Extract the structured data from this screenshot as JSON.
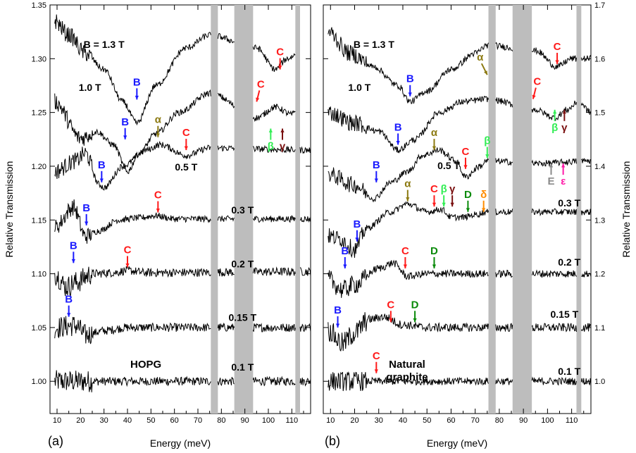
{
  "colors": {
    "B": "#1a1aff",
    "C": "#ff1a1a",
    "alpha": "#8c7a12",
    "beta": "#33ee55",
    "gamma": "#7a1010",
    "delta": "#ff8c00",
    "D": "#0a8a0a",
    "E": "#8a8a8a",
    "epsilon": "#ff1aa8",
    "trace": "#000000",
    "band": "#bdbdbd"
  },
  "chart_data": [
    {
      "type": "line",
      "panel_label": "(a)",
      "sample_label": "HOPG",
      "xlabel": "Energy (meV)",
      "ylabel": "Relative Transmission",
      "xlim": [
        7,
        118
      ],
      "ylim": [
        0.97,
        1.35
      ],
      "x_ticks": [
        "10",
        "20",
        "30",
        "40",
        "50",
        "60",
        "70",
        "80",
        "90",
        "100",
        "110"
      ],
      "y_ticks": [
        "1.00",
        "1.05",
        "1.10",
        "1.15",
        "1.20",
        "1.25",
        "1.30",
        "1.35"
      ],
      "gray_bands_meV": [
        [
          75.5,
          78.5
        ],
        [
          85.5,
          93.5
        ],
        [
          111.5,
          113.5
        ]
      ],
      "series": [
        {
          "name": "0.1 T",
          "baseline": 1.0,
          "anchors": [
            [
              9,
              1.0
            ],
            [
              118,
              1.0
            ]
          ],
          "noise": 0.004
        },
        {
          "name": "0.15 T",
          "baseline": 1.05,
          "anchors": [
            [
              9,
              1.05
            ],
            [
              18,
              1.052
            ],
            [
              22,
              1.043
            ],
            [
              30,
              1.047
            ],
            [
              40,
              1.05
            ],
            [
              118,
              1.05
            ]
          ],
          "noise": 0.004
        },
        {
          "name": "0.2 T",
          "baseline": 1.1,
          "anchors": [
            [
              9,
              1.1
            ],
            [
              14,
              1.088
            ],
            [
              18,
              1.092
            ],
            [
              25,
              1.1
            ],
            [
              34,
              1.101
            ],
            [
              40,
              1.103
            ],
            [
              48,
              1.101
            ],
            [
              118,
              1.102
            ]
          ],
          "noise": 0.004
        },
        {
          "name": "0.3 T",
          "baseline": 1.15,
          "anchors": [
            [
              9,
              1.143
            ],
            [
              17,
              1.162
            ],
            [
              22,
              1.135
            ],
            [
              28,
              1.14
            ],
            [
              36,
              1.15
            ],
            [
              45,
              1.152
            ],
            [
              52,
              1.154
            ],
            [
              60,
              1.151
            ],
            [
              118,
              1.151
            ]
          ],
          "noise": 0.003
        },
        {
          "name": "0.5 T",
          "baseline": 1.2,
          "anchors": [
            [
              9,
              1.195
            ],
            [
              18,
              1.205
            ],
            [
              22,
              1.212
            ],
            [
              28,
              1.183
            ],
            [
              30,
              1.18
            ],
            [
              38,
              1.2
            ],
            [
              48,
              1.215
            ],
            [
              54,
              1.22
            ],
            [
              65,
              1.21
            ],
            [
              75,
              1.217
            ],
            [
              118,
              1.215
            ]
          ],
          "noise": 0.003
        },
        {
          "name": "1.0 T",
          "baseline": 1.25,
          "anchors": [
            [
              9,
              1.26
            ],
            [
              20,
              1.226
            ],
            [
              27,
              1.232
            ],
            [
              34,
              1.22
            ],
            [
              40,
              1.195
            ],
            [
              45,
              1.212
            ],
            [
              52,
              1.23
            ],
            [
              62,
              1.25
            ],
            [
              75,
              1.268
            ],
            [
              95,
              1.245
            ],
            [
              103,
              1.255
            ],
            [
              110,
              1.248
            ],
            [
              113,
              1.256
            ]
          ],
          "noise": 0.003
        },
        {
          "name": "B = 1.3 T",
          "baseline": 1.3,
          "anchors": [
            [
              9,
              1.335
            ],
            [
              15,
              1.322
            ],
            [
              22,
              1.305
            ],
            [
              30,
              1.29
            ],
            [
              38,
              1.26
            ],
            [
              44,
              1.24
            ],
            [
              52,
              1.275
            ],
            [
              65,
              1.31
            ],
            [
              75,
              1.322
            ],
            [
              95,
              1.31
            ],
            [
              103,
              1.29
            ],
            [
              108,
              1.3
            ],
            [
              113,
              1.305
            ]
          ],
          "noise": 0.003
        }
      ],
      "annotations": [
        {
          "text": "B",
          "kind": "B",
          "dir": "down",
          "x": 15,
          "y": 1.06
        },
        {
          "text": "B",
          "kind": "B",
          "dir": "down",
          "x": 17,
          "y": 1.11
        },
        {
          "text": "B",
          "kind": "B",
          "dir": "down",
          "x": 22.5,
          "y": 1.145
        },
        {
          "text": "B",
          "kind": "B",
          "dir": "down",
          "x": 29,
          "y": 1.185
        },
        {
          "text": "B",
          "kind": "B",
          "dir": "down",
          "x": 39,
          "y": 1.225
        },
        {
          "text": "B",
          "kind": "B",
          "dir": "down",
          "x": 44,
          "y": 1.262
        },
        {
          "text": "C",
          "kind": "C",
          "dir": "down",
          "x": 40,
          "y": 1.106
        },
        {
          "text": "C",
          "kind": "C",
          "dir": "down",
          "x": 53,
          "y": 1.157
        },
        {
          "text": "C",
          "kind": "C",
          "dir": "down",
          "x": 65,
          "y": 1.215
        },
        {
          "text": "C",
          "kind": "C",
          "dir": "down-left",
          "x": 95,
          "y": 1.26
        },
        {
          "text": "C",
          "kind": "C",
          "dir": "down",
          "x": 105,
          "y": 1.29
        },
        {
          "text": "α",
          "kind": "alpha",
          "dir": "down",
          "x": 53,
          "y": 1.227
        },
        {
          "text": "β",
          "kind": "beta",
          "dir": "up",
          "x": 101,
          "y": 1.235
        },
        {
          "text": "γ",
          "kind": "gamma",
          "dir": "up",
          "x": 106,
          "y": 1.235
        }
      ],
      "curve_labels": [
        {
          "text": "B = 1.3 T",
          "x": 30,
          "y": 1.31
        },
        {
          "text": "1.0 T",
          "x": 24,
          "y": 1.27
        },
        {
          "text": "0.5 T",
          "x": 65,
          "y": 1.196
        },
        {
          "text": "0.3 T",
          "x": 89,
          "y": 1.156
        },
        {
          "text": "0.2 T",
          "x": 89,
          "y": 1.106
        },
        {
          "text": "0.15 T",
          "x": 89,
          "y": 1.056
        },
        {
          "text": "0.1 T",
          "x": 89,
          "y": 1.01
        }
      ]
    },
    {
      "type": "line",
      "panel_label": "(b)",
      "sample_label": "Natural graphite",
      "xlabel": "Energy (meV)",
      "ylabel": "Relative Transmission",
      "xlim": [
        7,
        118
      ],
      "ylim": [
        0.94,
        1.7
      ],
      "x_ticks": [
        "10",
        "20",
        "30",
        "40",
        "50",
        "60",
        "70",
        "80",
        "90",
        "100",
        "110"
      ],
      "y_ticks": [
        "1.0",
        "1.1",
        "1.2",
        "1.3",
        "1.4",
        "1.5",
        "1.6",
        "1.7"
      ],
      "gray_bands_meV": [
        [
          75.5,
          78.5
        ],
        [
          85.5,
          93.5
        ],
        [
          112,
          114
        ]
      ],
      "series": [
        {
          "name": "0.1 T",
          "baseline": 1.0,
          "anchors": [
            [
              9,
              1.0
            ],
            [
              118,
              1.0
            ]
          ],
          "noise": 0.007
        },
        {
          "name": "0.15 T",
          "baseline": 1.1,
          "anchors": [
            [
              9,
              1.095
            ],
            [
              15,
              1.07
            ],
            [
              20,
              1.09
            ],
            [
              26,
              1.115
            ],
            [
              32,
              1.12
            ],
            [
              40,
              1.105
            ],
            [
              50,
              1.1
            ],
            [
              118,
              1.1
            ]
          ],
          "noise": 0.008
        },
        {
          "name": "0.2 T",
          "baseline": 1.2,
          "anchors": [
            [
              9,
              1.19
            ],
            [
              15,
              1.17
            ],
            [
              20,
              1.18
            ],
            [
              30,
              1.21
            ],
            [
              36,
              1.22
            ],
            [
              42,
              1.195
            ],
            [
              50,
              1.2
            ],
            [
              118,
              1.2
            ]
          ],
          "noise": 0.007
        },
        {
          "name": "0.3 T",
          "baseline": 1.3,
          "anchors": [
            [
              9,
              1.27
            ],
            [
              14,
              1.265
            ],
            [
              20,
              1.245
            ],
            [
              25,
              1.285
            ],
            [
              35,
              1.315
            ],
            [
              42,
              1.33
            ],
            [
              50,
              1.315
            ],
            [
              56,
              1.32
            ],
            [
              60,
              1.305
            ],
            [
              65,
              1.305
            ],
            [
              70,
              1.31
            ],
            [
              75,
              1.315
            ],
            [
              118,
              1.315
            ]
          ],
          "noise": 0.006
        },
        {
          "name": "0.5 T",
          "baseline": 1.4,
          "anchors": [
            [
              9,
              1.385
            ],
            [
              20,
              1.365
            ],
            [
              28,
              1.34
            ],
            [
              35,
              1.37
            ],
            [
              42,
              1.39
            ],
            [
              48,
              1.42
            ],
            [
              55,
              1.43
            ],
            [
              62,
              1.41
            ],
            [
              66,
              1.38
            ],
            [
              72,
              1.4
            ],
            [
              75,
              1.41
            ],
            [
              95,
              1.405
            ],
            [
              118,
              1.41
            ]
          ],
          "noise": 0.006
        },
        {
          "name": "1.0 T",
          "baseline": 1.5,
          "anchors": [
            [
              9,
              1.5
            ],
            [
              20,
              1.48
            ],
            [
              30,
              1.465
            ],
            [
              38,
              1.43
            ],
            [
              45,
              1.45
            ],
            [
              55,
              1.5
            ],
            [
              65,
              1.52
            ],
            [
              75,
              1.525
            ],
            [
              95,
              1.505
            ],
            [
              103,
              1.49
            ],
            [
              108,
              1.505
            ],
            [
              113,
              1.52
            ],
            [
              118,
              1.5
            ]
          ],
          "noise": 0.006
        },
        {
          "name": "B = 1.3 T",
          "baseline": 1.6,
          "anchors": [
            [
              9,
              1.65
            ],
            [
              18,
              1.61
            ],
            [
              28,
              1.585
            ],
            [
              38,
              1.55
            ],
            [
              43,
              1.52
            ],
            [
              50,
              1.54
            ],
            [
              60,
              1.58
            ],
            [
              70,
              1.61
            ],
            [
              75,
              1.625
            ],
            [
              95,
              1.615
            ],
            [
              104,
              1.585
            ],
            [
              110,
              1.6
            ],
            [
              118,
              1.6
            ]
          ],
          "noise": 0.006
        }
      ],
      "annotations": [
        {
          "text": "C",
          "kind": "C",
          "dir": "down",
          "x": 29,
          "y": 1.015
        },
        {
          "text": "B",
          "kind": "B",
          "dir": "down",
          "x": 13,
          "y": 1.1
        },
        {
          "text": "C",
          "kind": "C",
          "dir": "down",
          "x": 35,
          "y": 1.11
        },
        {
          "text": "D",
          "kind": "D",
          "dir": "down",
          "x": 45,
          "y": 1.11
        },
        {
          "text": "B",
          "kind": "B",
          "dir": "down",
          "x": 16,
          "y": 1.21
        },
        {
          "text": "C",
          "kind": "C",
          "dir": "down",
          "x": 41,
          "y": 1.21
        },
        {
          "text": "D",
          "kind": "D",
          "dir": "down",
          "x": 53,
          "y": 1.21
        },
        {
          "text": "B",
          "kind": "B",
          "dir": "down",
          "x": 21,
          "y": 1.26
        },
        {
          "text": "α",
          "kind": "alpha",
          "dir": "down",
          "x": 42,
          "y": 1.335
        },
        {
          "text": "C",
          "kind": "C",
          "dir": "down",
          "x": 53,
          "y": 1.325
        },
        {
          "text": "β",
          "kind": "beta",
          "dir": "down",
          "x": 57,
          "y": 1.325
        },
        {
          "text": "γ",
          "kind": "gamma",
          "dir": "down",
          "x": 60.5,
          "y": 1.325
        },
        {
          "text": "D",
          "kind": "D",
          "dir": "down",
          "x": 67,
          "y": 1.315
        },
        {
          "text": "δ",
          "kind": "delta",
          "dir": "down",
          "x": 73.5,
          "y": 1.315
        },
        {
          "text": "B",
          "kind": "B",
          "dir": "down",
          "x": 29,
          "y": 1.37
        },
        {
          "text": "B",
          "kind": "B",
          "dir": "down",
          "x": 38,
          "y": 1.44
        },
        {
          "text": "B",
          "kind": "B",
          "dir": "down",
          "x": 43,
          "y": 1.53
        },
        {
          "text": "α",
          "kind": "alpha",
          "dir": "down",
          "x": 53,
          "y": 1.43
        },
        {
          "text": "C",
          "kind": "C",
          "dir": "down",
          "x": 66,
          "y": 1.395
        },
        {
          "text": "β",
          "kind": "beta",
          "dir": "down",
          "x": 75,
          "y": 1.415
        },
        {
          "text": "α",
          "kind": "alpha",
          "dir": "down-right",
          "x": 75,
          "y": 1.57
        },
        {
          "text": "C",
          "kind": "C",
          "dir": "down-left",
          "x": 94,
          "y": 1.525
        },
        {
          "text": "C",
          "kind": "C",
          "dir": "down",
          "x": 104,
          "y": 1.59
        },
        {
          "text": "β",
          "kind": "beta",
          "dir": "up",
          "x": 103,
          "y": 1.505
        },
        {
          "text": "γ",
          "kind": "gamma",
          "dir": "up",
          "x": 107,
          "y": 1.505
        },
        {
          "text": "E",
          "kind": "E",
          "dir": "up",
          "x": 101.5,
          "y": 1.405
        },
        {
          "text": "ε",
          "kind": "epsilon",
          "dir": "up",
          "x": 106.5,
          "y": 1.405
        }
      ],
      "curve_labels": [
        {
          "text": "B = 1.3 T",
          "x": 28,
          "y": 1.62
        },
        {
          "text": "1.0 T",
          "x": 22,
          "y": 1.54
        },
        {
          "text": "0.5 T",
          "x": 59,
          "y": 1.395
        },
        {
          "text": "0.3 T",
          "x": 109,
          "y": 1.325
        },
        {
          "text": "0.2 T",
          "x": 109,
          "y": 1.215
        },
        {
          "text": "0.15 T",
          "x": 107,
          "y": 1.118
        },
        {
          "text": "0.1 T",
          "x": 109,
          "y": 1.012
        }
      ]
    }
  ]
}
